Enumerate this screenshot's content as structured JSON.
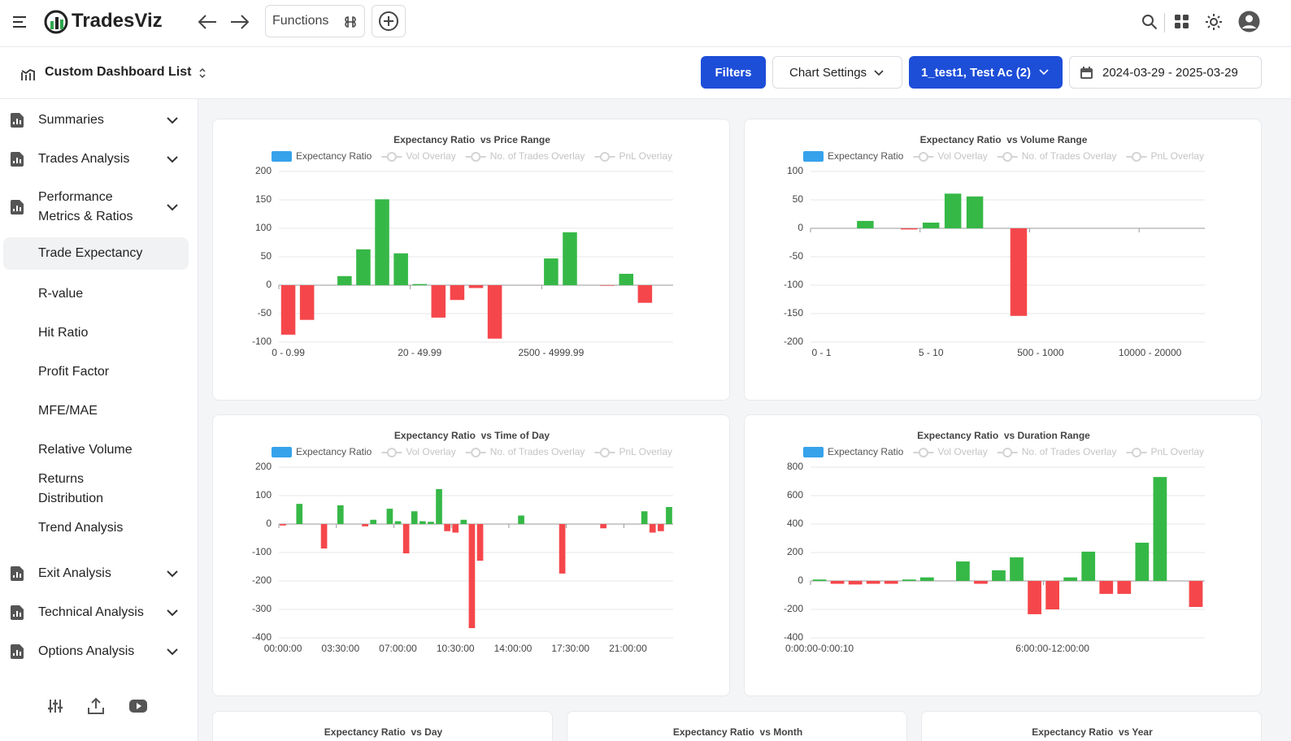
{
  "header": {
    "brand": "TradesViz",
    "functions": "Functions"
  },
  "toolbar": {
    "dashboard": "Custom Dashboard List",
    "filters": "Filters",
    "chart_settings": "Chart Settings",
    "account": "1_test1, Test Ac (2)",
    "date_range": "2024-03-29 - 2025-03-29"
  },
  "sidebar": {
    "items": [
      {
        "label": "Summaries",
        "group": true
      },
      {
        "label": "Trades Analysis",
        "group": true
      },
      {
        "label": "Performance Metrics & Ratios",
        "group": true
      },
      {
        "label": "Trade Expectancy",
        "selected": true
      },
      {
        "label": "R-value"
      },
      {
        "label": "Hit Ratio"
      },
      {
        "label": "Profit Factor"
      },
      {
        "label": "MFE/MAE"
      },
      {
        "label": "Relative Volume"
      },
      {
        "label": "Returns Distribution"
      },
      {
        "label": "Trend Analysis"
      },
      {
        "label": "Exit Analysis",
        "group": true
      },
      {
        "label": "Technical Analysis",
        "group": true
      },
      {
        "label": "Options Analysis",
        "group": true
      }
    ]
  },
  "legend": [
    {
      "name": "Expectancy Ratio",
      "color": "#36a2eb",
      "active": true
    },
    {
      "name": "Vol Overlay",
      "color": "#d4d4d4",
      "active": false
    },
    {
      "name": "No. of Trades Overlay",
      "color": "#d4d4d4",
      "active": false
    },
    {
      "name": "PnL Overlay",
      "color": "#d4d4d4",
      "active": false
    }
  ],
  "bar_colors": {
    "positive": "#36b847",
    "negative": "#f5474b"
  },
  "charts": [
    {
      "type": "bar",
      "title": "Expectancy Ratio  vs Price Range",
      "categories": [
        "0 - 0.99",
        null,
        null,
        null,
        null,
        null,
        null,
        "20 - 49.99",
        null,
        null,
        null,
        null,
        null,
        null,
        "2500 - 4999.99",
        null,
        null,
        null,
        null,
        null,
        null
      ],
      "values": [
        -87,
        -61,
        0,
        16,
        63,
        151,
        56,
        2,
        -57,
        -26,
        -5,
        -94,
        0,
        0,
        47,
        93,
        0,
        -1,
        20,
        -31,
        0
      ],
      "ylim": [
        -100,
        200
      ],
      "yticks": [
        200,
        150,
        100,
        50,
        0,
        -50,
        -100
      ],
      "grid": true
    },
    {
      "type": "bar",
      "title": "Expectancy Ratio  vs Volume Range",
      "categories": [
        "0 - 1",
        null,
        null,
        null,
        null,
        "5 - 10",
        null,
        null,
        null,
        null,
        "500 - 1000",
        null,
        null,
        null,
        null,
        "10000 - 20000",
        null,
        null
      ],
      "values": [
        0,
        0,
        13,
        0,
        -2,
        10,
        61,
        56,
        0,
        -154,
        0,
        0,
        0,
        0,
        0,
        0,
        0,
        0
      ],
      "ylim": [
        -200,
        100
      ],
      "yticks": [
        100,
        50,
        0,
        -50,
        -100,
        -150,
        -200
      ],
      "grid": true
    },
    {
      "type": "bar",
      "title": "Expectancy Ratio  vs Time of Day",
      "categories": [
        "00:00:00",
        null,
        null,
        null,
        null,
        null,
        null,
        "03:30:00",
        null,
        null,
        null,
        null,
        null,
        null,
        "07:00:00",
        null,
        null,
        null,
        null,
        null,
        null,
        "10:30:00",
        null,
        null,
        null,
        null,
        null,
        null,
        "14:00:00",
        null,
        null,
        null,
        null,
        null,
        null,
        "17:30:00",
        null,
        null,
        null,
        null,
        null,
        null,
        "21:00:00",
        null,
        null,
        null,
        null,
        null
      ],
      "values": [
        -5,
        0,
        71,
        0,
        0,
        -86,
        0,
        66,
        0,
        0,
        -8,
        15,
        0,
        54,
        10,
        -103,
        45,
        10,
        8,
        123,
        -25,
        -30,
        15,
        -366,
        -129,
        0,
        0,
        0,
        0,
        30,
        0,
        0,
        0,
        0,
        -174,
        0,
        0,
        0,
        0,
        -15,
        0,
        0,
        0,
        0,
        45,
        -30,
        -25,
        60
      ],
      "ylim": [
        -400,
        200
      ],
      "yticks": [
        200,
        100,
        0,
        -100,
        -200,
        -300,
        -400
      ],
      "grid": true
    },
    {
      "type": "bar",
      "title": "Expectancy Ratio  vs Duration Range",
      "categories": [
        "0:00:00-0:00:10",
        null,
        null,
        null,
        null,
        null,
        null,
        null,
        null,
        null,
        null,
        null,
        null,
        "6:00:00-12:00:00",
        null,
        null,
        null,
        null,
        null,
        null,
        null,
        null
      ],
      "values": [
        10,
        -20,
        -25,
        -20,
        -20,
        10,
        25,
        0,
        137,
        -20,
        75,
        166,
        -234,
        -200,
        25,
        206,
        -91,
        -91,
        269,
        731,
        0,
        -183
      ],
      "ylim": [
        -400,
        800
      ],
      "yticks": [
        800,
        600,
        400,
        200,
        0,
        -200,
        -400
      ],
      "grid": true
    }
  ],
  "more_charts": [
    {
      "title": "Expectancy Ratio  vs Day"
    },
    {
      "title": "Expectancy Ratio  vs Month"
    },
    {
      "title": "Expectancy Ratio  vs Year"
    }
  ]
}
